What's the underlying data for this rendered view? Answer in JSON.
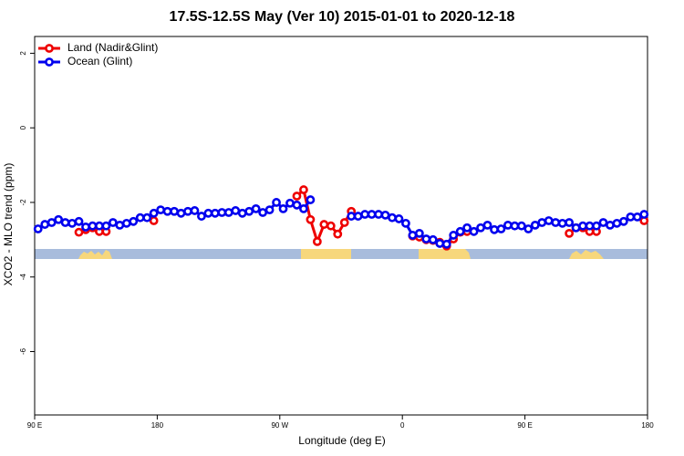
{
  "chart_data": {
    "type": "line",
    "title": "17.5S-12.5S May (Ver 10)   2015-01-01 to 2020-12-18",
    "xlabel": "Longitude (deg E)",
    "ylabel": "XCO2 - MLO trend (ppm)",
    "x": [
      92.5,
      97.5,
      102.5,
      107.5,
      112.5,
      117.5,
      122.5,
      127.5,
      132.5,
      137.5,
      142.5,
      147.5,
      152.5,
      157.5,
      162.5,
      167.5,
      172.5,
      177.5,
      182.5,
      187.5,
      192.5,
      197.5,
      202.5,
      207.5,
      212.5,
      217.5,
      222.5,
      227.5,
      232.5,
      237.5,
      242.5,
      247.5,
      252.5,
      257.5,
      262.5,
      267.5,
      272.5,
      277.5,
      282.5,
      287.5,
      292.5,
      297.5,
      302.5,
      307.5,
      312.5,
      317.5,
      322.5,
      327.5,
      332.5,
      337.5,
      342.5,
      347.5,
      352.5,
      357.5,
      362.5,
      367.5,
      372.5,
      377.5,
      382.5,
      387.5,
      392.5,
      397.5,
      402.5,
      407.5,
      412.5,
      417.5,
      422.5,
      427.5,
      432.5,
      437.5,
      442.5,
      447.5,
      452.5,
      457.5,
      462.5,
      467.5,
      472.5,
      477.5,
      482.5,
      487.5,
      492.5,
      497.5,
      502.5,
      507.5,
      512.5,
      517.5,
      522.5,
      527.5,
      532.5,
      537.5
    ],
    "series": [
      {
        "name": "Land (Nadir&Glint)",
        "color": "#ee0000",
        "values": [
          null,
          null,
          null,
          null,
          null,
          null,
          -2.8,
          -2.73,
          -2.68,
          -2.78,
          -2.78,
          null,
          null,
          null,
          null,
          null,
          null,
          -2.49,
          null,
          null,
          null,
          null,
          null,
          null,
          null,
          null,
          null,
          null,
          null,
          null,
          null,
          null,
          null,
          null,
          null,
          null,
          null,
          null,
          -1.83,
          -1.66,
          -2.46,
          -3.05,
          -2.59,
          -2.63,
          -2.85,
          -2.54,
          -2.24,
          null,
          null,
          null,
          null,
          null,
          null,
          null,
          null,
          -2.9,
          -2.93,
          -3.0,
          -3.02,
          -3.07,
          -3.17,
          -2.98,
          -2.8,
          -2.78,
          null,
          null,
          null,
          null,
          null,
          null,
          null,
          null,
          null,
          null,
          null,
          null,
          null,
          null,
          -2.83,
          -2.68,
          -2.68,
          -2.78,
          -2.78,
          null,
          null,
          null,
          null,
          null,
          null,
          -2.49
        ]
      },
      {
        "name": "Ocean (Glint)",
        "color": "#0000ee",
        "values": [
          -2.71,
          -2.59,
          -2.54,
          -2.46,
          -2.54,
          -2.56,
          -2.51,
          -2.66,
          -2.63,
          -2.63,
          -2.63,
          -2.54,
          -2.61,
          -2.56,
          -2.51,
          -2.41,
          -2.41,
          -2.29,
          -2.2,
          -2.24,
          -2.24,
          -2.29,
          -2.24,
          -2.22,
          -2.37,
          -2.29,
          -2.29,
          -2.27,
          -2.27,
          -2.22,
          -2.29,
          -2.24,
          -2.17,
          -2.27,
          -2.2,
          -2.0,
          -2.17,
          -2.02,
          -2.07,
          -2.17,
          -1.93,
          null,
          null,
          null,
          null,
          null,
          -2.37,
          -2.37,
          -2.32,
          -2.32,
          -2.32,
          -2.34,
          -2.41,
          -2.44,
          -2.56,
          -2.88,
          -2.83,
          -2.98,
          -3.0,
          -3.1,
          -3.12,
          -2.88,
          -2.78,
          -2.68,
          -2.78,
          -2.68,
          -2.61,
          -2.73,
          -2.71,
          -2.61,
          -2.63,
          -2.63,
          -2.71,
          -2.61,
          -2.54,
          -2.49,
          -2.54,
          -2.56,
          -2.54,
          -2.68,
          -2.63,
          -2.63,
          -2.63,
          -2.54,
          -2.61,
          -2.56,
          -2.51,
          -2.39,
          -2.39,
          -2.32
        ]
      }
    ],
    "xlim": [
      90,
      540
    ],
    "xticks": [
      {
        "value": 90,
        "label": "90 E"
      },
      180,
      {
        "value": 270,
        "label": "90 W"
      },
      {
        "value": 360,
        "label": "0"
      },
      {
        "value": 450,
        "label": "90 E"
      },
      180
    ],
    "ylim": [
      -7.7,
      2.45
    ],
    "yticks": [
      2,
      0,
      -2,
      -4,
      -6
    ],
    "legend": "upper left"
  }
}
